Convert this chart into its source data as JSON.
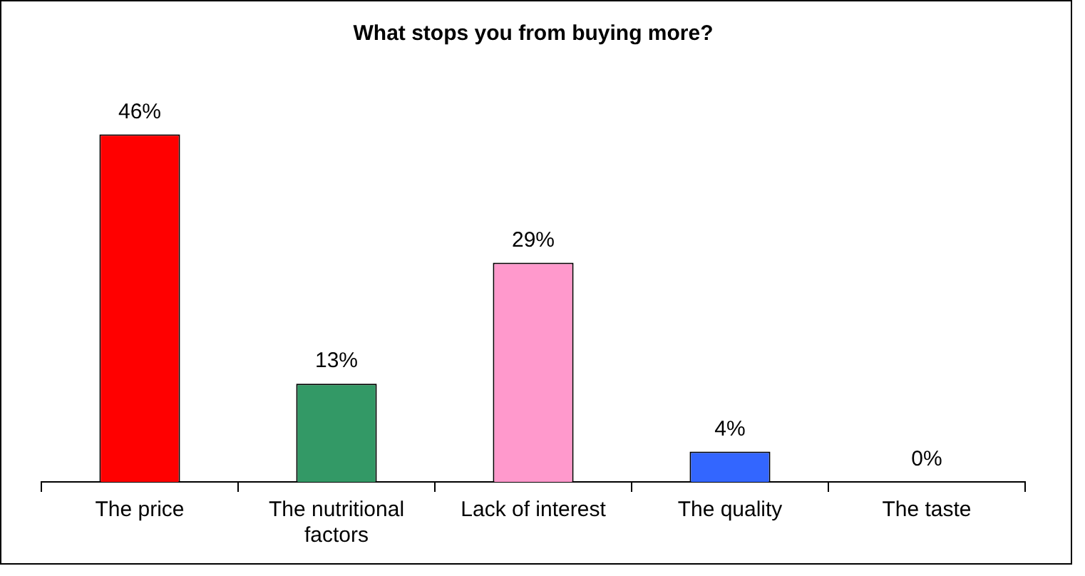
{
  "chart_data": {
    "type": "bar",
    "title": "What stops you from buying more?",
    "categories": [
      "The price",
      "The nutritional factors",
      "Lack of interest",
      "The quality",
      "The taste"
    ],
    "values": [
      46,
      13,
      29,
      4,
      0
    ],
    "colors": [
      "#ff0000",
      "#339966",
      "#ff99cc",
      "#3366ff",
      "#ffffff"
    ],
    "value_labels": [
      "46%",
      "13%",
      "29%",
      "4%",
      "0%"
    ],
    "grid": false,
    "legend": false
  }
}
